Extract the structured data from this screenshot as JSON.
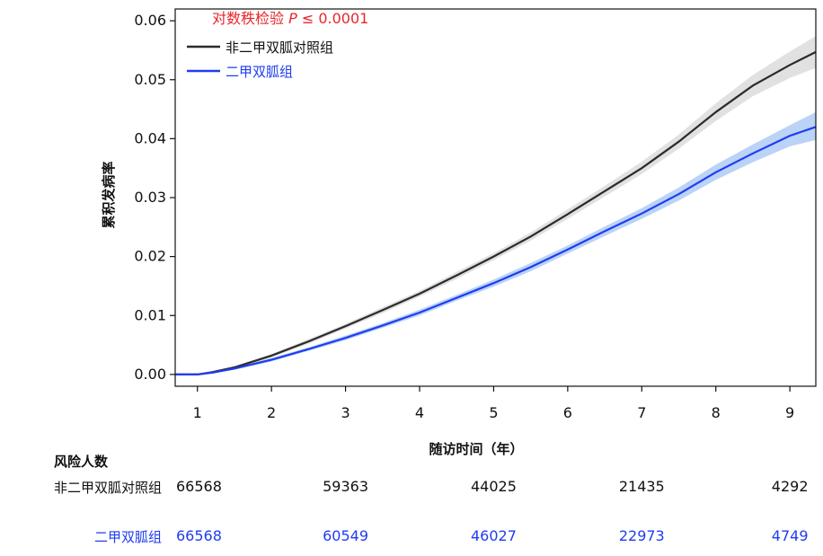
{
  "chart_data": {
    "type": "line",
    "annotation": "对数秩检验 P ≤ 0.0001",
    "annotation_color": "#e8262a",
    "xlabel": "随访时间（年）",
    "ylabel": "累积发病率",
    "xlim": [
      0.7,
      9.35
    ],
    "ylim": [
      -0.002,
      0.062
    ],
    "x_ticks": [
      1,
      2,
      3,
      4,
      5,
      6,
      7,
      8,
      9
    ],
    "y_ticks": [
      "0.00",
      "0.01",
      "0.02",
      "0.03",
      "0.04",
      "0.05",
      "0.06"
    ],
    "legend_position": "top-left",
    "series": [
      {
        "name": "非二甲双胍对照组",
        "color": "#2b2b2b",
        "band_color": "#d9d9d9",
        "x": [
          0.7,
          1.0,
          1.2,
          1.5,
          2.0,
          2.5,
          3.0,
          3.5,
          4.0,
          4.5,
          5.0,
          5.5,
          6.0,
          6.5,
          7.0,
          7.5,
          8.0,
          8.5,
          9.0,
          9.35
        ],
        "y": [
          0.0,
          0.0,
          0.0004,
          0.0012,
          0.0032,
          0.0056,
          0.0082,
          0.0109,
          0.0137,
          0.0168,
          0.02,
          0.0234,
          0.0272,
          0.0311,
          0.035,
          0.0395,
          0.0445,
          0.049,
          0.0525,
          0.0547
        ],
        "lower": [
          0.0,
          0.0,
          0.0003,
          0.001,
          0.0029,
          0.0052,
          0.0078,
          0.0104,
          0.0132,
          0.0162,
          0.0194,
          0.0227,
          0.0264,
          0.0302,
          0.034,
          0.0383,
          0.043,
          0.0472,
          0.0503,
          0.052
        ],
        "upper": [
          0.0,
          0.0,
          0.0005,
          0.0014,
          0.0035,
          0.006,
          0.0086,
          0.0114,
          0.0142,
          0.0174,
          0.0206,
          0.0241,
          0.028,
          0.032,
          0.0361,
          0.0407,
          0.046,
          0.0508,
          0.0548,
          0.0574
        ]
      },
      {
        "name": "二甲双胍组",
        "color": "#1f3df0",
        "band_color": "#a9c8f5",
        "x": [
          0.7,
          1.0,
          1.2,
          1.5,
          2.0,
          2.5,
          3.0,
          3.5,
          4.0,
          4.5,
          5.0,
          5.5,
          6.0,
          6.5,
          7.0,
          7.5,
          8.0,
          8.5,
          9.0,
          9.35
        ],
        "y": [
          0.0,
          0.0,
          0.0003,
          0.001,
          0.0025,
          0.0043,
          0.0062,
          0.0083,
          0.0105,
          0.013,
          0.0155,
          0.0182,
          0.0212,
          0.0243,
          0.0273,
          0.0306,
          0.0343,
          0.0375,
          0.0405,
          0.042
        ],
        "lower": [
          0.0,
          0.0,
          0.0002,
          0.0008,
          0.0022,
          0.004,
          0.0058,
          0.0079,
          0.01,
          0.0125,
          0.0149,
          0.0175,
          0.0205,
          0.0235,
          0.0264,
          0.0295,
          0.033,
          0.036,
          0.0387,
          0.0398
        ],
        "upper": [
          0.0,
          0.0,
          0.0004,
          0.0012,
          0.0028,
          0.0046,
          0.0066,
          0.0087,
          0.011,
          0.0135,
          0.0161,
          0.0189,
          0.0219,
          0.0251,
          0.0282,
          0.0317,
          0.0356,
          0.039,
          0.0423,
          0.0445
        ]
      }
    ]
  },
  "risk_table": {
    "title": "风险人数",
    "x_positions": [
      1,
      3,
      5,
      7,
      9
    ],
    "rows": [
      {
        "label": "非二甲双胍对照组",
        "color": "#111111",
        "values": [
          "66568",
          "59363",
          "44025",
          "21435",
          "4292"
        ]
      },
      {
        "label": "二甲双胍组",
        "color": "#1f3df0",
        "values": [
          "66568",
          "60549",
          "46027",
          "22973",
          "4749"
        ]
      }
    ]
  }
}
